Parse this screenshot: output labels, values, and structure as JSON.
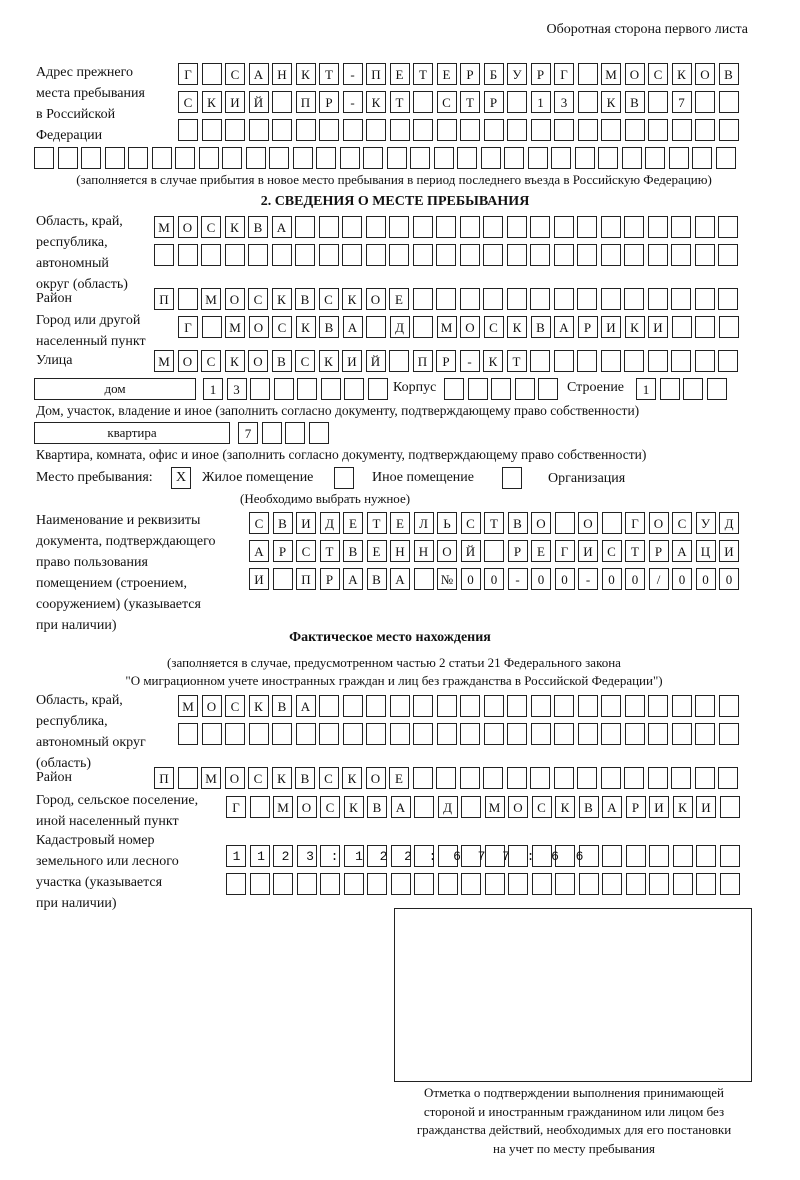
{
  "header": "Оборотная сторона первого листа",
  "prev_address": {
    "label": [
      "Адрес прежнего",
      "места пребывания",
      "в Российской",
      "Федерации"
    ],
    "rows": [
      "Г САНКТ-ПЕТЕРБУРГ МОСКОВ",
      "СКИЙ ПР-КТ СТР 13 КВ 7  ",
      "                        ",
      "                              "
    ],
    "note": "(заполняется в случае прибытия в новое место пребывания в период последнего въезда в Российскую Федерацию)"
  },
  "section2": {
    "title": "2. СВЕДЕНИЯ О МЕСТЕ ПРЕБЫВАНИЯ",
    "region_label": [
      "Область, край,",
      "республика,",
      "автономный",
      "округ (область)"
    ],
    "region_rows": [
      "МОСКВА                   ",
      "                         "
    ],
    "district_label": "Район",
    "district_row": "П МОСКВСКОЕ              ",
    "city_label": [
      "Город или другой",
      "населенный пункт"
    ],
    "city_row": "Г МОСКВА Д МОСКВАРИКИ   ",
    "street_label": "Улица",
    "street_row": "МОСКОВСКИЙ ПР-КТ         ",
    "house_type": "дом",
    "house_row": "13      ",
    "korpus_label": "Корпус",
    "korpus_row": "     ",
    "building_label": "Строение",
    "building_row": "1   ",
    "house_note": "Дом, участок, владение и иное (заполнить согласно документу, подтверждающему право собственности)",
    "apt_type": "квартира",
    "apt_row": "7   ",
    "apt_note": "Квартира, комната, офис и иное (заполнить согласно документу, подтверждающему право собственности)",
    "stay_label": "Место пребывания:",
    "stay_options": [
      {
        "label": "Жилое помещение",
        "mark": "X"
      },
      {
        "label": "Иное помещение",
        "mark": ""
      },
      {
        "label": "Организация",
        "mark": ""
      }
    ],
    "stay_note": "(Необходимо выбрать нужное)",
    "doc_label": [
      "Наименование и реквизиты",
      "документа, подтверждающего",
      "право пользования",
      "помещением (строением,",
      "сооружением) (указывается",
      "при наличии)"
    ],
    "doc_rows": [
      "СВИДЕТЕЛЬСТВО О ГОСУД",
      "АРСТВЕННОЙ РЕГИСТРАЦИ",
      "И ПРАВА №00-00-00/000"
    ]
  },
  "actual": {
    "title": "Фактическое место нахождения",
    "note1": "(заполняется в случае, предусмотренном частью 2 статьи 21 Федерального закона",
    "note2": "\"О миграционном учете иностранных граждан и лиц без гражданства в Российской Федерации\")",
    "region_label": [
      "Область, край,",
      "республика,",
      "автономный округ",
      "(область)"
    ],
    "region_rows": [
      "МОСКВА                  ",
      "                        "
    ],
    "district_label": "Район",
    "district_row": "П МОСКВСКОЕ              ",
    "city_label": [
      "Город, сельское поселение,",
      "иной населенный пункт"
    ],
    "city_row": "Г МОСКВА Д МОСКВАРИКИ ",
    "cadastral_label": [
      "Кадастровый номер",
      "земельного или лесного",
      "участка (указывается",
      "при наличии)"
    ],
    "cadastral_rows": [
      "1123:122:677:66       ",
      "                      "
    ]
  },
  "confirmation": {
    "caption": [
      "Отметка о подтверждении выполнения принимающей",
      "стороной и иностранным гражданином или лицом без",
      "гражданства действий, необходимых для его постановки",
      "на учет по месту пребывания"
    ]
  }
}
